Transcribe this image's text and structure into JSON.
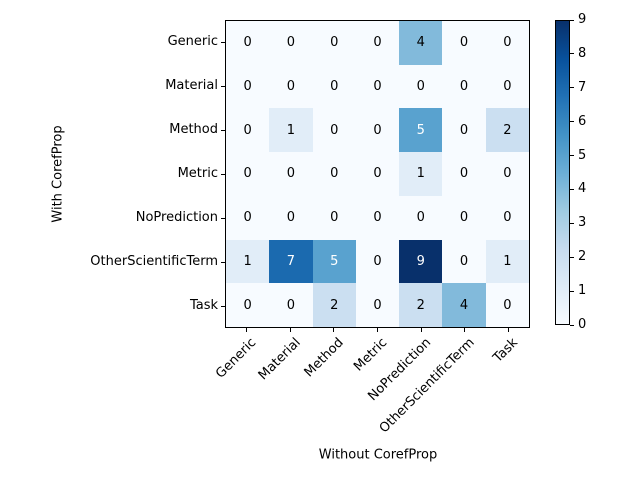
{
  "figure": {
    "background": "#ffffff"
  },
  "chart_data": {
    "type": "heatmap",
    "title": "",
    "xlabel": "Without CorefProp",
    "ylabel": "With CorefProp",
    "x_categories": [
      "Generic",
      "Material",
      "Method",
      "Metric",
      "NoPrediction",
      "OtherScientificTerm",
      "Task"
    ],
    "y_categories": [
      "Generic",
      "Material",
      "Method",
      "Metric",
      "NoPrediction",
      "OtherScientificTerm",
      "Task"
    ],
    "matrix": [
      [
        0,
        0,
        0,
        0,
        4,
        0,
        0
      ],
      [
        0,
        0,
        0,
        0,
        0,
        0,
        0
      ],
      [
        0,
        1,
        0,
        0,
        5,
        0,
        2
      ],
      [
        0,
        0,
        0,
        0,
        1,
        0,
        0
      ],
      [
        0,
        0,
        0,
        0,
        0,
        0,
        0
      ],
      [
        1,
        7,
        5,
        0,
        9,
        0,
        1
      ],
      [
        0,
        0,
        2,
        0,
        2,
        4,
        0
      ]
    ],
    "vmin": 0,
    "vmax": 9,
    "grid": false,
    "legend_position": "right-colorbar",
    "colormap": "Blues",
    "colormap_stops": [
      [
        0.0,
        "#f7fbff"
      ],
      [
        0.125,
        "#deebf7"
      ],
      [
        0.25,
        "#c6dbef"
      ],
      [
        0.375,
        "#9ecae1"
      ],
      [
        0.5,
        "#6baed6"
      ],
      [
        0.625,
        "#4292c6"
      ],
      [
        0.75,
        "#2171b5"
      ],
      [
        0.875,
        "#08519c"
      ],
      [
        1.0,
        "#08306b"
      ]
    ],
    "colorbar_ticks": [
      0,
      1,
      2,
      3,
      4,
      5,
      6,
      7,
      8,
      9
    ],
    "cell_label_threshold": 4.5,
    "cell_label_color_low": "#000000",
    "cell_label_color_high": "#ffffff",
    "axis_color": "#000000"
  }
}
